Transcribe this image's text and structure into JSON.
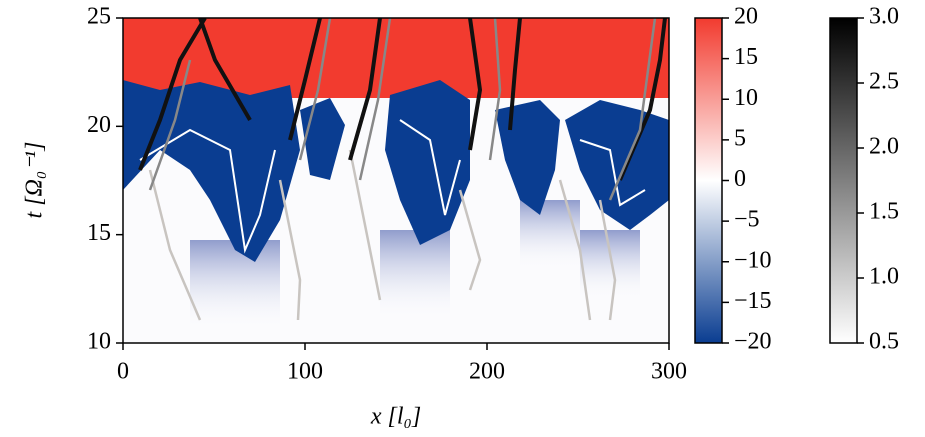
{
  "chart_data": {
    "type": "heatmap",
    "xlabel": "x [l₀]",
    "ylabel": "t [Ω₀⁻¹]",
    "xlim": [
      0,
      300
    ],
    "xticks": [
      0,
      100,
      200,
      300
    ],
    "ylim": [
      10,
      25
    ],
    "yticks": [
      10,
      15,
      20,
      25
    ],
    "colorbars": [
      {
        "clim": [
          -20,
          20
        ],
        "colors": [
          "#0a3d91",
          "#ffffff",
          "#f23b2f"
        ],
        "ticks": [
          {
            "value": -20,
            "label": "−20"
          },
          {
            "value": -15,
            "label": "−15"
          },
          {
            "value": -10,
            "label": "−10"
          },
          {
            "value": -5,
            "label": "−5"
          },
          0,
          5,
          10,
          15,
          20
        ]
      },
      {
        "clim": [
          0.5,
          3.0
        ],
        "colors": [
          "#ffffff",
          "#000000"
        ],
        "ticks": [
          0.5,
          {
            "value": 1,
            "label": "1.0"
          },
          1.5,
          {
            "value": 2,
            "label": "2.0"
          },
          2.5,
          {
            "value": 3,
            "label": "3.0"
          }
        ]
      }
    ]
  }
}
